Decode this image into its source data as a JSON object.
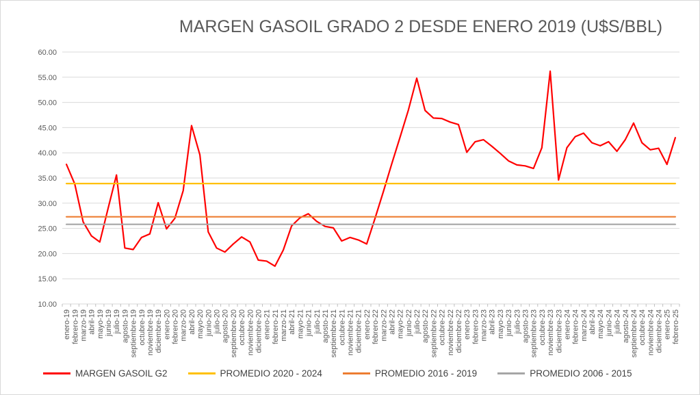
{
  "title": "MARGEN GASOIL GRADO 2 DESDE ENERO 2019 (U$S/BBL)",
  "chart_data": {
    "type": "line",
    "title": "MARGEN GASOIL GRADO 2 DESDE ENERO 2019 (U$S/BBL)",
    "categories": [
      "enero-19",
      "febrero-19",
      "marzo-19",
      "abril-19",
      "mayo-19",
      "junio-19",
      "julio-19",
      "agosto-19",
      "septiembre-19",
      "octubre-19",
      "noviembre-19",
      "diciembre-19",
      "enero-20",
      "febrero-20",
      "marzo-20",
      "abril-20",
      "mayo-20",
      "junio-20",
      "julio-20",
      "agosto-20",
      "septiembre-20",
      "octubre-20",
      "noviembre-20",
      "diciembre-20",
      "enero-21",
      "febrero-21",
      "marzo-21",
      "abril-21",
      "mayo-21",
      "junio-21",
      "julio-21",
      "agosto-21",
      "septiembre-21",
      "octubre-21",
      "noviembre-21",
      "diciembre-21",
      "enero-22",
      "febrero-22",
      "marzo-22",
      "abril-22",
      "mayo-22",
      "junio-22",
      "julio-22",
      "agosto-22",
      "septiembre-22",
      "octubre-22",
      "noviembre-22",
      "diciembre-22",
      "enero-23",
      "febrero-23",
      "marzo-23",
      "abril-23",
      "mayo-23",
      "junio-23",
      "julio-23",
      "agosto-23",
      "septiembre-23",
      "octubre-23",
      "noviembre-23",
      "diciembre-23",
      "enero-24",
      "febrero-24",
      "marzo-24",
      "abril-24",
      "mayo-24",
      "junio-24",
      "julio-24",
      "agosto-24",
      "septiembre-24",
      "octubre-24",
      "noviembre-24",
      "diciembre-24",
      "enero-25",
      "febrero-25"
    ],
    "series": [
      {
        "name": "MARGEN GASOIL G2",
        "color": "#FF0000",
        "values": [
          37.7,
          33.8,
          26.3,
          23.5,
          22.3,
          29.0,
          35.6,
          21.1,
          20.8,
          23.2,
          23.9,
          30.1,
          24.9,
          27.0,
          32.5,
          45.4,
          39.6,
          24.3,
          21.1,
          20.3,
          21.9,
          23.3,
          22.3,
          18.7,
          18.5,
          17.5,
          20.7,
          25.5,
          27.1,
          27.9,
          26.4,
          25.4,
          25.1,
          22.5,
          23.2,
          22.7,
          21.9,
          27.0,
          32.3,
          37.8,
          43.1,
          48.5,
          54.8,
          48.4,
          46.9,
          46.8,
          46.1,
          45.6,
          40.1,
          42.2,
          42.6,
          41.3,
          39.9,
          38.4,
          37.6,
          37.4,
          36.9,
          41.0,
          56.2,
          34.6,
          41.0,
          43.2,
          43.9,
          42.0,
          41.4,
          42.2,
          40.3,
          42.6,
          45.9,
          42.0,
          40.6,
          40.9,
          37.7,
          43.0
        ]
      },
      {
        "name": "PROMEDIO 2020 - 2024",
        "color": "#FFC000",
        "constant": 33.9
      },
      {
        "name": "PROMEDIO 2016 - 2019",
        "color": "#ED7D31",
        "constant": 27.3
      },
      {
        "name": "PROMEDIO 2006 - 2015",
        "color": "#A6A6A6",
        "constant": 25.8
      }
    ],
    "ylim": [
      10,
      60
    ],
    "y_ticks": [
      {
        "value": 60,
        "label": "60.00"
      },
      {
        "value": 55,
        "label": "55.00"
      },
      {
        "value": 50,
        "label": "50.00"
      },
      {
        "value": 45,
        "label": "45.00"
      },
      {
        "value": 40,
        "label": "40.00"
      },
      {
        "value": 35,
        "label": "35.00"
      },
      {
        "value": 30,
        "label": "30.00"
      },
      {
        "value": 25,
        "label": "25.00"
      },
      {
        "value": 20,
        "label": "20.00"
      },
      {
        "value": 15,
        "label": "15.00"
      },
      {
        "value": 10,
        "label": "10.00"
      }
    ],
    "grid": true,
    "legend_position": "bottom",
    "colors": {
      "gridline": "#D9D9D9",
      "tick": "#BFBFBF",
      "axis_text": "#595959",
      "title_text": "#595959",
      "legend_text": "#404040",
      "border": "#D9D9D9"
    }
  }
}
